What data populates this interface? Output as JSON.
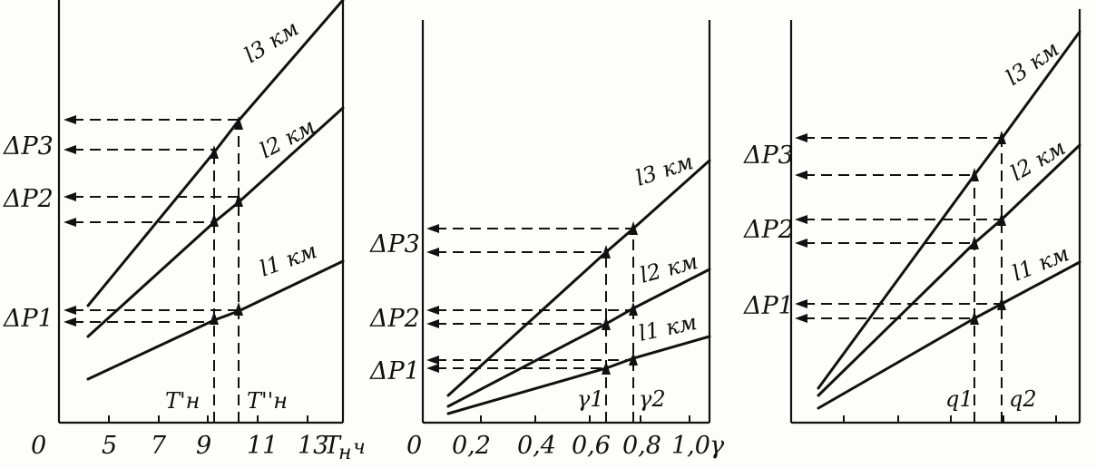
{
  "panel1": {
    "ticks_x": [
      "0",
      "5",
      "7",
      "9",
      "11",
      "13"
    ],
    "x_axis_label": "T",
    "x_axis_sub": "н",
    "x_axis_unit": "ч",
    "curve_labels": [
      "l3 км",
      "l2 км",
      "l1 км"
    ],
    "dp_labels": [
      "ΔP3",
      "ΔP2",
      "ΔP1"
    ],
    "markers": [
      "T'н",
      "T''н"
    ]
  },
  "panel2": {
    "ticks_x": [
      "0",
      "0,2",
      "0,4",
      "0,6",
      "0,8",
      "1,0"
    ],
    "x_axis_label": "γ",
    "curve_labels": [
      "l3 км",
      "l2 км",
      "l1 км"
    ],
    "dp_labels": [
      "ΔP3",
      "ΔP2",
      "ΔP1"
    ],
    "markers": [
      "γ1",
      "γ2"
    ]
  },
  "panel3": {
    "curve_labels": [
      "l3 км",
      "l2 км",
      "l1 км"
    ],
    "dp_labels": [
      "ΔP3",
      "ΔP2",
      "ΔP1"
    ],
    "markers": [
      "q1",
      "q2"
    ]
  }
}
